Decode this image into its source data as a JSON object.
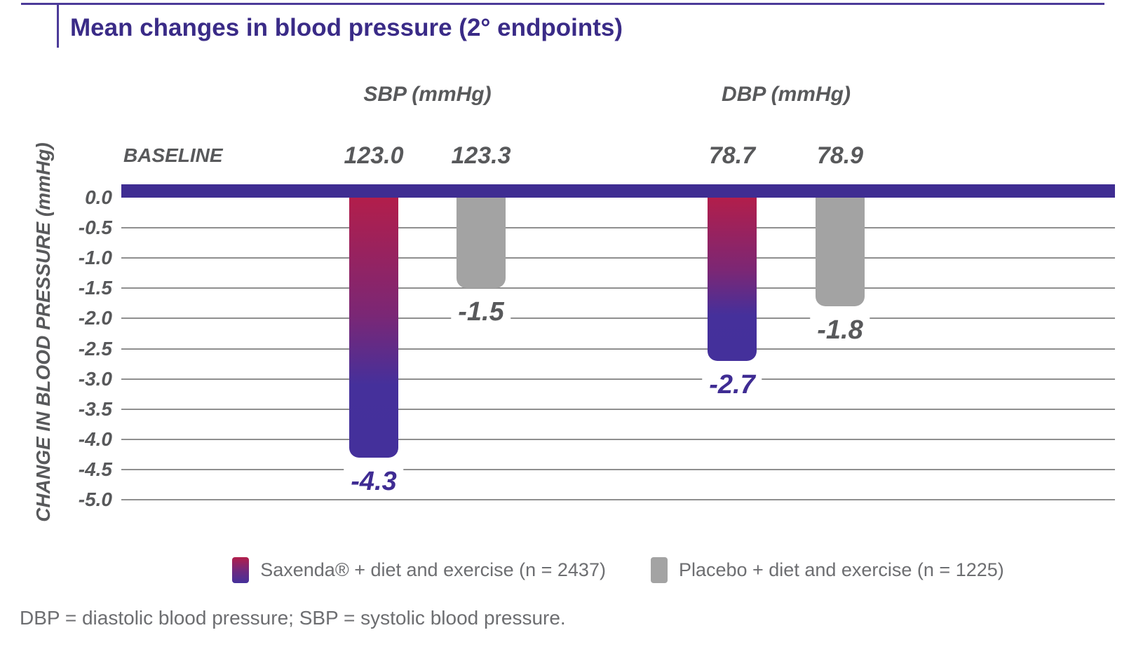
{
  "header": {
    "title": "Mean changes in blood pressure (2° endpoints)"
  },
  "chart_data": {
    "type": "bar",
    "title": "Mean changes in blood pressure (2° endpoints)",
    "ylabel": "CHANGE IN BLOOD PRESSURE (mmHg)",
    "baseline_row_label": "BASELINE",
    "ylim": [
      -5.0,
      0.0
    ],
    "ytick_step": 0.5,
    "ytick_labels": [
      "0.0",
      "-0.5",
      "-1.0",
      "-1.5",
      "-2.0",
      "-2.5",
      "-3.0",
      "-3.5",
      "-4.0",
      "-4.5",
      "-5.0"
    ],
    "grid": true,
    "legend_position": "bottom-center",
    "groups": [
      {
        "label": "SBP (mmHg)",
        "bars": [
          {
            "series": "saxenda",
            "baseline": "123.0",
            "value": -4.3,
            "value_label": "-4.3"
          },
          {
            "series": "placebo",
            "baseline": "123.3",
            "value": -1.5,
            "value_label": "-1.5"
          }
        ]
      },
      {
        "label": "DBP (mmHg)",
        "bars": [
          {
            "series": "saxenda",
            "baseline": "78.7",
            "value": -2.7,
            "value_label": "-2.7"
          },
          {
            "series": "placebo",
            "baseline": "78.9",
            "value": -1.8,
            "value_label": "-1.8"
          }
        ]
      }
    ],
    "series": [
      {
        "id": "saxenda",
        "name": "Saxenda® + diet and exercise (n = 2437)",
        "color_top": "#B21E4B",
        "color_bottom": "#45309B"
      },
      {
        "id": "placebo",
        "name": "Placebo + diet and exercise (n = 1225)",
        "color": "#A3A3A3"
      }
    ]
  },
  "footnote": "DBP = diastolic blood pressure; SBP = systolic blood pressure.",
  "colors": {
    "title_purple": "#3A2B87",
    "baseline_bar_purple": "#3F2D92",
    "saxenda_gradient_top": "#B21E4B",
    "saxenda_gradient_bottom": "#45309B",
    "placebo_gray": "#A3A3A3",
    "dark_gray_text": "#58595B",
    "light_gray_text": "#6D6E71",
    "gridline_gray": "#8F8F8F"
  }
}
